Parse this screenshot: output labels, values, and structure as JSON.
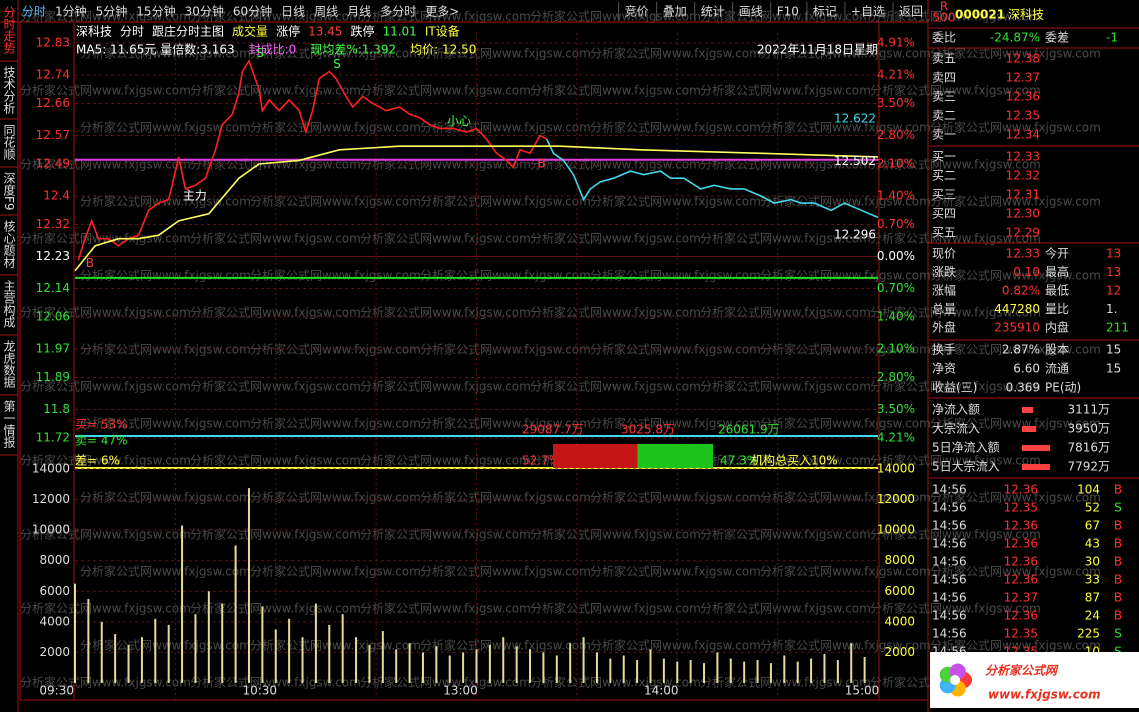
{
  "toolbar": {
    "left": [
      "分时",
      "1分钟",
      "5分钟",
      "15分钟",
      "30分钟",
      "60分钟",
      "日线",
      "周线",
      "月线",
      "多分时",
      "更多>"
    ],
    "right": [
      "竞价",
      "叠加",
      "统计",
      "画线",
      "F10",
      "标记",
      "+自选",
      "返回"
    ]
  },
  "side_tabs": [
    "分时走势",
    "技术分析",
    "同花顺",
    "深度F9",
    "核心题材",
    "主营构成",
    "龙虎数据",
    "第一情报"
  ],
  "chart_header": [
    {
      "text": "深科技",
      "color": "#ffffff"
    },
    {
      "text": "分时",
      "color": "#ffffff"
    },
    {
      "text": "跟庄分时主图",
      "color": "#ffffff"
    },
    {
      "text": "成交量",
      "color": "#ffff40"
    },
    {
      "text": "涨停",
      "color": "#ffffff"
    },
    {
      "text": "13.45",
      "color": "#ff4040"
    },
    {
      "text": "跌停",
      "color": "#ffffff"
    },
    {
      "text": "11.01",
      "color": "#40ff40"
    },
    {
      "text": "IT设备",
      "color": "#ffff40"
    }
  ],
  "indicator_row": [
    {
      "text": "MA5: 11.65元 量倍数:3.163",
      "color": "#ffffff"
    },
    {
      "text": "封成比:0",
      "color": "#ff60ff"
    },
    {
      "text": "现均差%:1.392",
      "color": "#40ff40"
    },
    {
      "text": "均价: 12.50",
      "color": "#ffff40"
    },
    {
      "text": "2022年11月18日星期",
      "color": "#ffffff"
    }
  ],
  "chart_data": [
    {
      "type": "line",
      "ylim": [
        11.72,
        12.83
      ],
      "yticks": [
        12.83,
        12.74,
        12.66,
        12.57,
        12.49,
        12.4,
        12.32,
        12.23,
        12.14,
        12.06,
        11.97,
        11.89,
        11.8,
        11.72
      ],
      "pct_ticks": [
        {
          "value": 4.91,
          "label": "4.91%"
        },
        {
          "value": 4.21,
          "label": "4.21%"
        },
        {
          "value": 3.5,
          "label": "3.50%"
        },
        {
          "value": 2.8,
          "label": "2.80%"
        },
        {
          "value": 2.1,
          "label": "2.10%"
        },
        {
          "value": 1.4,
          "label": "1.40%"
        },
        {
          "value": 0.7,
          "label": "0.70%"
        },
        {
          "value": 0,
          "label": "0.00%"
        },
        {
          "value": -0.7,
          "label": "0.70%"
        },
        {
          "value": -1.4,
          "label": "1.40%"
        },
        {
          "value": -2.1,
          "label": "2.10%"
        },
        {
          "value": -2.8,
          "label": "2.80%"
        },
        {
          "value": -3.5,
          "label": "3.50%"
        },
        {
          "value": -4.21,
          "label": "4.21%"
        }
      ],
      "xlim": [
        0,
        240
      ],
      "xticks": [
        {
          "value": 0,
          "label": "09:30"
        },
        {
          "value": 60,
          "label": "10:30"
        },
        {
          "value": 120,
          "label": "13:00"
        },
        {
          "value": 180,
          "label": "14:00"
        },
        {
          "value": 240,
          "label": "15:00"
        }
      ],
      "grid": true,
      "series": [
        {
          "color": "#ff2020",
          "x": [
            1,
            3,
            5,
            7,
            10,
            13,
            16,
            19,
            22,
            25,
            28,
            31,
            33,
            36,
            39,
            42,
            44,
            47,
            49,
            50,
            52,
            55,
            56,
            58,
            61,
            64,
            67,
            69,
            71,
            73,
            76,
            78,
            81,
            83,
            86,
            89,
            93,
            97,
            100,
            103,
            106,
            109,
            113,
            117,
            120,
            123,
            126,
            129,
            131,
            133,
            136,
            139,
            141
          ],
          "values": [
            12.22,
            12.28,
            12.33,
            12.28,
            12.28,
            12.26,
            12.28,
            12.29,
            12.36,
            12.38,
            12.39,
            12.51,
            12.42,
            12.43,
            12.45,
            12.53,
            12.6,
            12.63,
            12.69,
            12.75,
            12.78,
            12.7,
            12.64,
            12.67,
            12.64,
            12.67,
            12.64,
            12.58,
            12.64,
            12.73,
            12.75,
            12.73,
            12.68,
            12.65,
            12.68,
            12.66,
            12.64,
            12.65,
            12.63,
            12.62,
            12.6,
            12.59,
            12.59,
            12.58,
            12.59,
            12.56,
            12.52,
            12.5,
            12.48,
            12.53,
            12.52,
            12.57,
            12.56
          ]
        },
        {
          "color": "#40d8ec",
          "x": [
            141,
            143,
            146,
            149,
            152,
            154,
            157,
            161,
            166,
            170,
            175,
            178,
            182,
            187,
            191,
            196,
            200,
            205,
            209,
            214,
            217,
            221,
            226,
            230,
            235,
            240
          ],
          "values": [
            12.56,
            12.52,
            12.5,
            12.46,
            12.39,
            12.42,
            12.44,
            12.45,
            12.47,
            12.46,
            12.47,
            12.45,
            12.45,
            12.42,
            12.43,
            12.42,
            12.42,
            12.4,
            12.38,
            12.39,
            12.38,
            12.38,
            12.36,
            12.38,
            12.36,
            12.34
          ]
        },
        {
          "color": "#ffff60",
          "x": [
            0,
            6,
            13,
            19,
            25,
            31,
            40,
            49,
            55,
            67,
            79,
            97,
            121,
            145,
            169,
            205,
            240
          ],
          "values": [
            12.19,
            12.26,
            12.28,
            12.28,
            12.29,
            12.33,
            12.35,
            12.45,
            12.49,
            12.5,
            12.53,
            12.54,
            12.54,
            12.54,
            12.53,
            12.52,
            12.51
          ]
        }
      ],
      "ref_lines": [
        {
          "value": 12.502,
          "color": "#e040e0"
        },
        {
          "value": 12.17,
          "color": "#22dd22"
        }
      ],
      "level_labels": [
        {
          "value": 12.622,
          "color": "#40d8ec"
        },
        {
          "value": 12.502,
          "color": "#ffffff"
        },
        {
          "value": 12.296,
          "color": "#ffffff"
        }
      ],
      "signals": [
        {
          "text": "B",
          "x": 2,
          "y": 12.21,
          "color": "#ff4040"
        },
        {
          "text": "S",
          "x": 53,
          "y": 12.8,
          "color": "#40ff40"
        },
        {
          "text": "S",
          "x": 76,
          "y": 12.77,
          "color": "#40ff40"
        },
        {
          "text": "主力",
          "x": 31,
          "y": 12.4,
          "color": "#ffffff"
        },
        {
          "text": "小心",
          "x": 110,
          "y": 12.61,
          "color": "#40ff40"
        },
        {
          "text": "B",
          "x": 137,
          "y": 12.49,
          "color": "#ff4040"
        }
      ]
    },
    {
      "type": "bar",
      "color": "#e6dc9a",
      "ylim": [
        0,
        14000
      ],
      "yticks": [
        14000,
        12000,
        10000,
        8000,
        6000,
        4000,
        2000
      ],
      "x": [
        0,
        4,
        8,
        12,
        16,
        20,
        24,
        28,
        32,
        36,
        40,
        44,
        48,
        52,
        56,
        60,
        64,
        68,
        72,
        76,
        80,
        84,
        88,
        92,
        96,
        100,
        104,
        108,
        112,
        116,
        120,
        124,
        128,
        132,
        136,
        140,
        144,
        148,
        152,
        156,
        160,
        164,
        168,
        172,
        176,
        180,
        184,
        188,
        192,
        196,
        200,
        204,
        208,
        212,
        216,
        220,
        224,
        228,
        232,
        236
      ],
      "values": [
        6500,
        5500,
        4000,
        3200,
        2500,
        3000,
        4200,
        3800,
        10300,
        4500,
        6000,
        5200,
        9000,
        12750,
        5000,
        3500,
        4200,
        3000,
        5200,
        3800,
        4500,
        3000,
        2500,
        3400,
        2200,
        2600,
        2000,
        2400,
        1800,
        2000,
        2200,
        2500,
        3000,
        2400,
        2200,
        2000,
        1800,
        2600,
        3000,
        2000,
        1600,
        1800,
        1500,
        2200,
        1600,
        1400,
        1500,
        1300,
        2000,
        1600,
        1400,
        1500,
        1300,
        1800,
        1400,
        1600,
        1900,
        1500,
        2600,
        1700
      ]
    }
  ],
  "flow_panel": {
    "buy_label": "买= 53%",
    "sell_label": "卖= 47%",
    "diff_label": "差= 6%",
    "buy_amount": "29087.7万",
    "net_amount": "3025.8万",
    "sell_amount": "26061.9万",
    "buy_pct": 52.7,
    "buy_pct_label": "52.7%",
    "sell_pct": 47.3,
    "sell_pct_label": "47.3%",
    "inst": "机构总买入10%"
  },
  "quote": {
    "tag": "R",
    "tag_num": "500",
    "code": "000021",
    "name": "深科技",
    "ratio_row": [
      "委比",
      "-24.87%",
      "委差",
      "-1"
    ],
    "sells": [
      [
        "卖五",
        "12.38"
      ],
      [
        "卖四",
        "12.37"
      ],
      [
        "卖三",
        "12.36"
      ],
      [
        "卖二",
        "12.35"
      ],
      [
        "卖一",
        "12.34"
      ]
    ],
    "buys": [
      [
        "买一",
        "12.33"
      ],
      [
        "买二",
        "12.32"
      ],
      [
        "买三",
        "12.31"
      ],
      [
        "买四",
        "12.30"
      ],
      [
        "买五",
        "12.29"
      ]
    ],
    "stats": [
      [
        "现价",
        "12.33",
        "今开",
        "13"
      ],
      [
        "涨跌",
        "0.10",
        "最高",
        "13"
      ],
      [
        "涨幅",
        "0.82%",
        "最低",
        "12"
      ],
      [
        "总量",
        "447280",
        "量比",
        "1."
      ],
      [
        "外盘",
        "235910",
        "内盘",
        "211"
      ]
    ],
    "stats2": [
      [
        "换手",
        "2.87%",
        "股本",
        "15"
      ],
      [
        "净资",
        "6.60",
        "流通",
        "15"
      ],
      [
        "收益(三)",
        "0.369",
        "PE(动)",
        ""
      ]
    ],
    "flows": [
      {
        "label": "净流入额",
        "amount": 3111,
        "value_label": "3111万"
      },
      {
        "label": "大宗流入",
        "amount": 3950,
        "value_label": "3950万"
      },
      {
        "label": "5日净流入额",
        "amount": 7816,
        "value_label": "7816万"
      },
      {
        "label": "5日大宗流入",
        "amount": 7792,
        "value_label": "7792万"
      }
    ],
    "ticks": [
      [
        "14:56",
        "12.36",
        "104",
        "B"
      ],
      [
        "14:56",
        "12.35",
        "52",
        "S"
      ],
      [
        "14:56",
        "12.36",
        "67",
        "B"
      ],
      [
        "14:56",
        "12.36",
        "43",
        "B"
      ],
      [
        "14:56",
        "12.36",
        "30",
        "B"
      ],
      [
        "14:56",
        "12.36",
        "33",
        "B"
      ],
      [
        "14:56",
        "12.37",
        "87",
        "B"
      ],
      [
        "14:56",
        "12.36",
        "24",
        "B"
      ],
      [
        "14:56",
        "12.35",
        "225",
        "S"
      ],
      [
        "14:56",
        "12.35",
        "10",
        "S"
      ]
    ]
  },
  "watermark": "分析家公式网www.fxjgsw.com",
  "logo": {
    "title": "分析家公式网",
    "url": "www.fxjgsw.com"
  }
}
